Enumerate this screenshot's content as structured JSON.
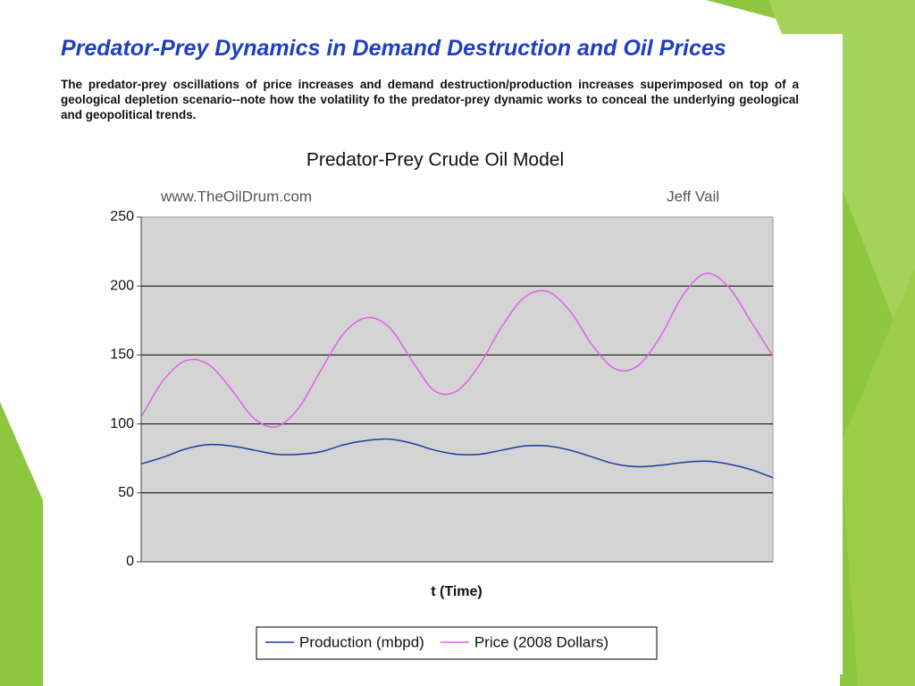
{
  "slide": {
    "title": "Predator-Prey Dynamics in Demand Destruction and Oil Prices",
    "description": "The predator-prey oscillations of price increases and demand destruction/production increases superimposed on top of a geological depletion scenario--note how the volatility fo the predator-prey dynamic works to conceal the underlying geological and geopolitical trends."
  },
  "chart_data": {
    "type": "line",
    "title": "Predator-Prey Crude Oil Model",
    "annotations": [
      "www.TheOilDrum.com",
      "Jeff Vail"
    ],
    "xlabel": "t (Time)",
    "series": [
      {
        "name": "Production (mbpd)",
        "color": "#1f3c99",
        "values": [
          71,
          76,
          82,
          85,
          84,
          81,
          78,
          78,
          80,
          85,
          88,
          89,
          86,
          81,
          78,
          78,
          81,
          84,
          84,
          81,
          76,
          71,
          69,
          70,
          72,
          73,
          71,
          67,
          61
        ]
      },
      {
        "name": "Price (2008 Dollars)",
        "color": "#e060e8",
        "values": [
          105,
          132,
          146,
          143,
          125,
          104,
          98,
          112,
          140,
          166,
          177,
          170,
          146,
          124,
          124,
          143,
          171,
          192,
          196,
          182,
          157,
          140,
          142,
          163,
          193,
          209,
          200,
          175,
          149
        ]
      }
    ],
    "ylim": [
      0,
      250
    ],
    "yticks": [
      0,
      50,
      100,
      150,
      200,
      250
    ],
    "grid": true,
    "legend": "bottom"
  }
}
